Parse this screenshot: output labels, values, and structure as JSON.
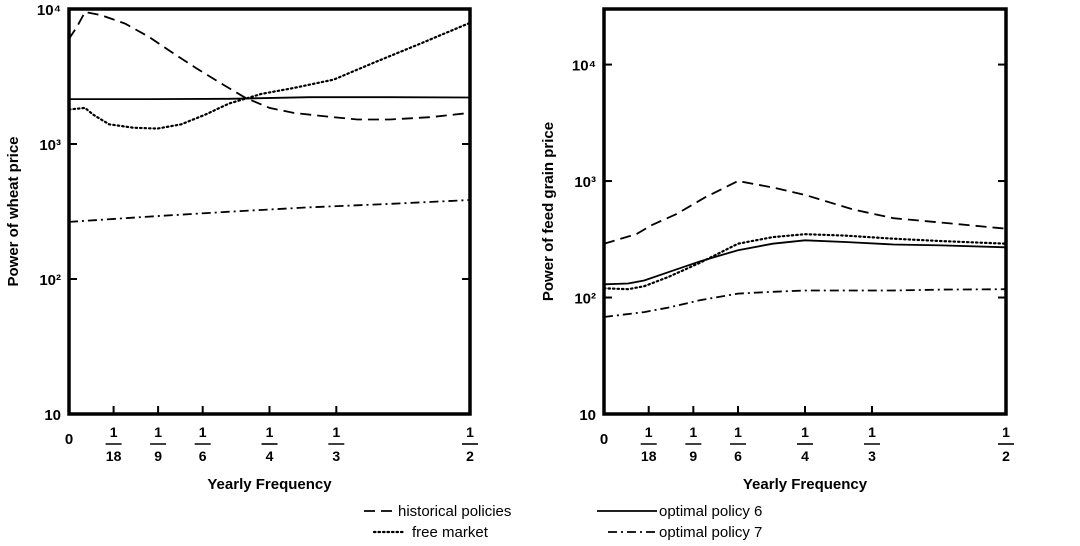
{
  "chart_data": [
    {
      "type": "line",
      "ylabel": "Power of wheat price",
      "xlabel": "Yearly Frequency",
      "yscale": "log",
      "ylim": [
        10,
        10000
      ],
      "xlim": [
        0,
        0.5
      ],
      "y_ticks": [
        {
          "value": 10,
          "label": "10"
        },
        {
          "value": 100,
          "label": "10²"
        },
        {
          "value": 1000,
          "label": "10³"
        },
        {
          "value": 10000,
          "label": "10⁴"
        }
      ],
      "x_ticks": [
        {
          "value": 0,
          "label": "0",
          "frac": false
        },
        {
          "value": 0.0556,
          "num": "1",
          "den": "18",
          "frac": true
        },
        {
          "value": 0.1111,
          "num": "1",
          "den": "9",
          "frac": true
        },
        {
          "value": 0.1667,
          "num": "1",
          "den": "6",
          "frac": true
        },
        {
          "value": 0.25,
          "num": "1",
          "den": "4",
          "frac": true
        },
        {
          "value": 0.3333,
          "num": "1",
          "den": "3",
          "frac": true
        },
        {
          "value": 0.5,
          "num": "1",
          "den": "2",
          "frac": true
        }
      ],
      "series": [
        {
          "name": "historical policies",
          "style": "dashed",
          "x": [
            0,
            0.01,
            0.02,
            0.04,
            0.07,
            0.1,
            0.13,
            0.16,
            0.19,
            0.22,
            0.25,
            0.28,
            0.32,
            0.36,
            0.4,
            0.45,
            0.5
          ],
          "y": [
            6000,
            7400,
            9500,
            9000,
            7800,
            6200,
            4700,
            3600,
            2800,
            2200,
            1850,
            1700,
            1600,
            1520,
            1520,
            1580,
            1700
          ]
        },
        {
          "name": "free market",
          "style": "dotted",
          "x": [
            0,
            0.02,
            0.03,
            0.05,
            0.08,
            0.11,
            0.14,
            0.17,
            0.2,
            0.24,
            0.28,
            0.33,
            0.38,
            0.44,
            0.5
          ],
          "y": [
            1800,
            1850,
            1650,
            1400,
            1320,
            1300,
            1400,
            1650,
            2000,
            2350,
            2600,
            3000,
            4000,
            5600,
            7900
          ]
        },
        {
          "name": "optimal policy 6",
          "style": "solid",
          "x": [
            0,
            0.1,
            0.2,
            0.3,
            0.4,
            0.5
          ],
          "y": [
            2150,
            2150,
            2160,
            2220,
            2220,
            2210
          ]
        },
        {
          "name": "optimal policy 7",
          "style": "dashdot",
          "x": [
            0,
            0.1,
            0.2,
            0.3,
            0.4,
            0.5
          ],
          "y": [
            265,
            290,
            315,
            340,
            360,
            385
          ]
        }
      ]
    },
    {
      "type": "line",
      "ylabel": "Power of feed grain price",
      "xlabel": "Yearly Frequency",
      "yscale": "log",
      "ylim": [
        10,
        30000
      ],
      "xlim": [
        0,
        0.5
      ],
      "y_ticks": [
        {
          "value": 10,
          "label": "10"
        },
        {
          "value": 100,
          "label": "10²"
        },
        {
          "value": 1000,
          "label": "10³"
        },
        {
          "value": 10000,
          "label": "10⁴"
        }
      ],
      "x_ticks": [
        {
          "value": 0,
          "label": "0",
          "frac": false
        },
        {
          "value": 0.0556,
          "num": "1",
          "den": "18",
          "frac": true
        },
        {
          "value": 0.1111,
          "num": "1",
          "den": "9",
          "frac": true
        },
        {
          "value": 0.1667,
          "num": "1",
          "den": "6",
          "frac": true
        },
        {
          "value": 0.25,
          "num": "1",
          "den": "4",
          "frac": true
        },
        {
          "value": 0.3333,
          "num": "1",
          "den": "3",
          "frac": true
        },
        {
          "value": 0.5,
          "num": "1",
          "den": "2",
          "frac": true
        }
      ],
      "series": [
        {
          "name": "historical policies",
          "style": "dashed",
          "x": [
            0,
            0.04,
            0.06,
            0.09,
            0.125,
            0.1667,
            0.21,
            0.25,
            0.31,
            0.36,
            0.42,
            0.5
          ],
          "y": [
            290,
            350,
            420,
            520,
            720,
            1000,
            880,
            760,
            570,
            480,
            440,
            390
          ]
        },
        {
          "name": "free market",
          "style": "dotted",
          "x": [
            0,
            0.03,
            0.05,
            0.08,
            0.12,
            0.1667,
            0.21,
            0.25,
            0.3,
            0.36,
            0.42,
            0.5
          ],
          "y": [
            120,
            118,
            125,
            150,
            200,
            290,
            330,
            350,
            340,
            320,
            305,
            290
          ]
        },
        {
          "name": "optimal policy 6",
          "style": "solid",
          "x": [
            0,
            0.03,
            0.05,
            0.08,
            0.12,
            0.1667,
            0.21,
            0.25,
            0.3,
            0.36,
            0.42,
            0.5
          ],
          "y": [
            130,
            132,
            140,
            165,
            205,
            255,
            290,
            310,
            300,
            285,
            280,
            270
          ]
        },
        {
          "name": "optimal policy 7",
          "style": "dashdot",
          "x": [
            0,
            0.05,
            0.08,
            0.12,
            0.1667,
            0.21,
            0.25,
            0.3,
            0.36,
            0.42,
            0.5
          ],
          "y": [
            68,
            75,
            82,
            95,
            108,
            112,
            115,
            115,
            115,
            117,
            118
          ]
        }
      ]
    }
  ],
  "legend": {
    "items": [
      {
        "label": "historical policies",
        "style": "dashed"
      },
      {
        "label": "free market",
        "style": "dotted"
      },
      {
        "label": "optimal policy 6",
        "style": "solid"
      },
      {
        "label": "optimal policy 7",
        "style": "dashdot"
      }
    ]
  }
}
